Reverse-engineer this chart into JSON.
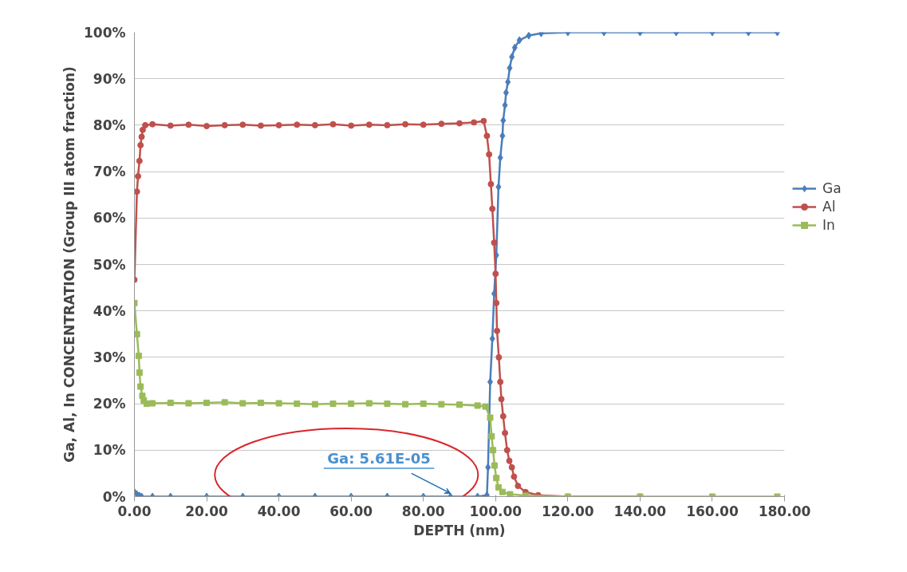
{
  "chart_data": {
    "type": "line",
    "xlabel": "DEPTH (nm)",
    "ylabel": "Ga, Al, In CONCENTRATION (Group III atom fraction)",
    "xlim": [
      0,
      180
    ],
    "ylim": [
      0,
      100
    ],
    "xticks": [
      {
        "value": 0,
        "label": "0.00"
      },
      {
        "value": 20,
        "label": "20.00"
      },
      {
        "value": 40,
        "label": "40.00"
      },
      {
        "value": 60,
        "label": "60.00"
      },
      {
        "value": 80,
        "label": "80.00"
      },
      {
        "value": 100,
        "label": "100.00"
      },
      {
        "value": 120,
        "label": "120.00"
      },
      {
        "value": 140,
        "label": "140.00"
      },
      {
        "value": 160,
        "label": "160.00"
      },
      {
        "value": 180,
        "label": "180.00"
      }
    ],
    "yticks": [
      {
        "value": 0,
        "label": "0%"
      },
      {
        "value": 10,
        "label": "10%"
      },
      {
        "value": 20,
        "label": "20%"
      },
      {
        "value": 30,
        "label": "30%"
      },
      {
        "value": 40,
        "label": "40%"
      },
      {
        "value": 50,
        "label": "50%"
      },
      {
        "value": 60,
        "label": "60%"
      },
      {
        "value": 70,
        "label": "70%"
      },
      {
        "value": 80,
        "label": "80%"
      },
      {
        "value": 90,
        "label": "90%"
      },
      {
        "value": 100,
        "label": "100%"
      }
    ],
    "grid": "y",
    "legend": "right",
    "line_style": "solid",
    "series": [
      {
        "name": "Ga",
        "color": "#4a7ebb",
        "marker": "diamond",
        "x": [
          0,
          0.7,
          1.4,
          2,
          5,
          10,
          20,
          30,
          40,
          50,
          60,
          70,
          80,
          87.5,
          95,
          97.6,
          97.9,
          98.5,
          99.1,
          99.6,
          100.2,
          100.8,
          101.3,
          101.9,
          102.1,
          102.6,
          102.9,
          103.4,
          103.9,
          104.5,
          105.3,
          106.6,
          109.2,
          112.6,
          120,
          130,
          140,
          150,
          160,
          170,
          178
        ],
        "values": [
          1,
          0.5,
          0.2,
          0,
          0,
          0,
          0,
          0,
          0,
          0,
          0,
          0,
          0,
          0,
          0,
          0.3,
          6.3,
          24.7,
          34,
          43.7,
          52,
          66.7,
          73,
          77.7,
          81,
          84.3,
          87,
          89.3,
          92.3,
          94.7,
          96.7,
          98.3,
          99.3,
          99.8,
          100,
          100,
          100,
          100,
          100,
          100,
          100
        ]
      },
      {
        "name": "Al",
        "color": "#c0504d",
        "marker": "circle",
        "x": [
          0,
          0.7,
          1,
          1.4,
          1.7,
          2,
          2.3,
          3,
          5,
          10,
          15,
          20,
          25,
          30,
          35,
          40,
          45,
          50,
          55,
          60,
          65,
          70,
          75,
          80,
          85,
          90,
          94,
          96.7,
          97.6,
          98.2,
          98.7,
          99.1,
          99.6,
          100,
          100.2,
          100.4,
          100.9,
          101.3,
          101.6,
          102.1,
          102.6,
          103.2,
          103.8,
          104.5,
          105.1,
          106.2,
          108.3,
          111.8,
          120,
          140
        ],
        "values": [
          46.7,
          65.7,
          69,
          72.3,
          75.7,
          77.5,
          79,
          80,
          80.2,
          79.9,
          80.1,
          79.8,
          80,
          80.1,
          79.9,
          80,
          80.1,
          80,
          80.2,
          79.9,
          80.1,
          80,
          80.2,
          80.1,
          80.3,
          80.4,
          80.6,
          80.9,
          77.7,
          73.7,
          67.3,
          62,
          54.7,
          48,
          41.7,
          35.7,
          30,
          24.7,
          21,
          17.3,
          13.7,
          10,
          7.7,
          6.3,
          4.3,
          2.3,
          1,
          0.3,
          0,
          0
        ]
      },
      {
        "name": "In",
        "color": "#9bbb59",
        "marker": "square",
        "x": [
          0,
          0.7,
          1.2,
          1.4,
          1.7,
          2.2,
          2.6,
          3.4,
          5,
          10,
          15,
          20,
          25,
          30,
          35,
          40,
          45,
          50,
          55,
          60,
          65,
          70,
          75,
          80,
          85,
          90,
          95,
          97.2,
          98.5,
          98.9,
          99.3,
          99.7,
          100.2,
          100.8,
          101.9,
          104,
          108.3,
          120,
          140,
          160,
          178
        ],
        "values": [
          41.7,
          35,
          30.3,
          26.7,
          23.7,
          21.7,
          20.7,
          20,
          20.1,
          20.2,
          20.1,
          20.2,
          20.3,
          20.1,
          20.2,
          20.1,
          20,
          19.9,
          20,
          20,
          20.1,
          20,
          19.9,
          20,
          19.9,
          19.8,
          19.6,
          19.4,
          17,
          13,
          10,
          6.7,
          4,
          2,
          1,
          0.5,
          0.2,
          0,
          0,
          0,
          0
        ]
      }
    ],
    "annotations": [
      {
        "text": "Ga: 5.61E-05",
        "x": 87.5,
        "y": 0
      }
    ]
  }
}
